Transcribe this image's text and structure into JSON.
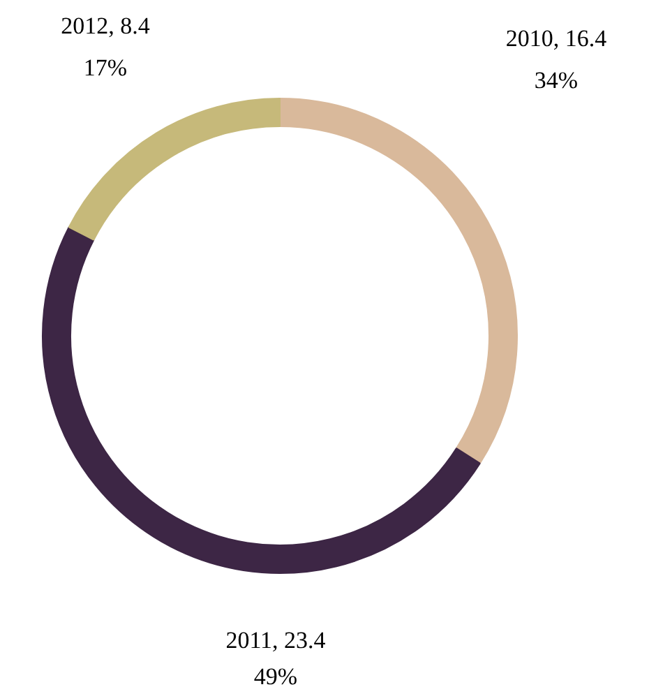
{
  "chart_data": {
    "type": "donut",
    "categories": [
      "2010",
      "2011",
      "2012"
    ],
    "values": [
      16.4,
      23.4,
      8.4
    ],
    "colors": [
      "#d9b99b",
      "#3d2645",
      "#c6b97a"
    ],
    "data_labels": true,
    "value_labels": [
      "16.4\n34%",
      "23.4\n49%",
      "8.4\n17%"
    ]
  }
}
